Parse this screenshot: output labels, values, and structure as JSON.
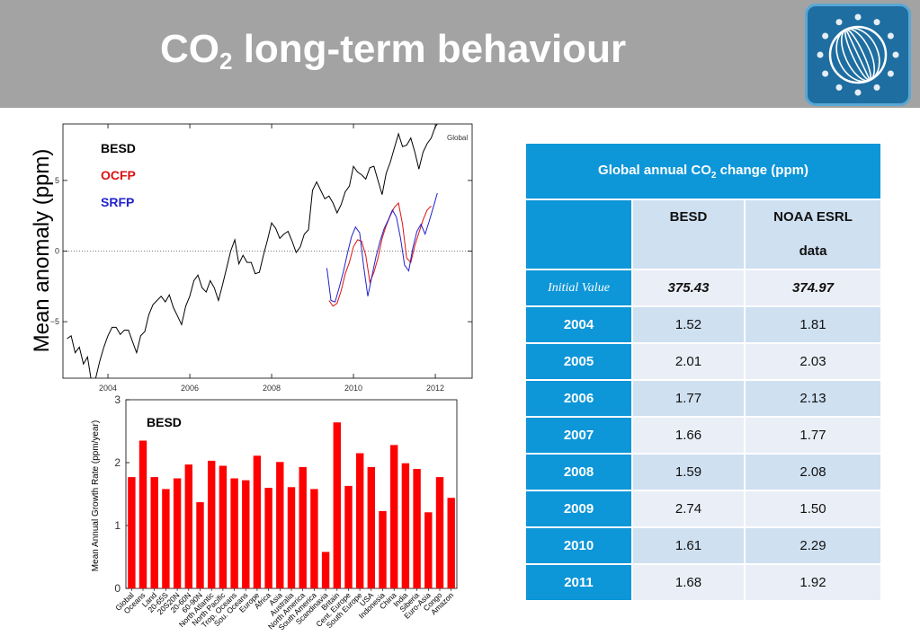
{
  "header": {
    "title_main": "CO",
    "title_sub": "2",
    "title_rest": " long-term behaviour"
  },
  "chart_data": [
    {
      "type": "line",
      "title": "Global",
      "xlabel": "",
      "ylabel": "Mean anomaly (ppm)",
      "xlim": [
        2002.9,
        2012.9
      ],
      "ylim": [
        -9,
        9
      ],
      "xticks": [
        2004,
        2006,
        2008,
        2010,
        2012
      ],
      "yticks": [
        -5,
        0,
        5
      ],
      "zero_line": "dotted",
      "legend_placement": "top-left",
      "series": [
        {
          "name": "BESD",
          "color": "#000000",
          "x": [
            2003.0,
            2003.1,
            2003.2,
            2003.3,
            2003.4,
            2003.5,
            2003.6,
            2003.7,
            2003.8,
            2003.9,
            2004.0,
            2004.1,
            2004.2,
            2004.3,
            2004.4,
            2004.5,
            2004.6,
            2004.7,
            2004.8,
            2004.9,
            2005.0,
            2005.1,
            2005.2,
            2005.3,
            2005.4,
            2005.5,
            2005.6,
            2005.7,
            2005.8,
            2005.9,
            2006.0,
            2006.1,
            2006.2,
            2006.3,
            2006.4,
            2006.5,
            2006.6,
            2006.7,
            2006.8,
            2006.9,
            2007.0,
            2007.1,
            2007.2,
            2007.3,
            2007.4,
            2007.5,
            2007.6,
            2007.7,
            2007.8,
            2007.9,
            2008.0,
            2008.1,
            2008.2,
            2008.3,
            2008.4,
            2008.5,
            2008.6,
            2008.7,
            2008.8,
            2008.9,
            2009.0,
            2009.1,
            2009.2,
            2009.3,
            2009.4,
            2009.5,
            2009.6,
            2009.7,
            2009.8,
            2009.9,
            2010.0,
            2010.1,
            2010.2,
            2010.3,
            2010.4,
            2010.5,
            2010.6,
            2010.7,
            2010.8,
            2010.9,
            2011.0,
            2011.1,
            2011.2,
            2011.3,
            2011.4,
            2011.5,
            2011.6,
            2011.7,
            2011.8,
            2011.9,
            2012.0,
            2012.05
          ],
          "y": [
            -6.2,
            -6.0,
            -7.2,
            -6.8,
            -8.0,
            -7.5,
            -9.3,
            -9.0,
            -7.8,
            -6.8,
            -6.0,
            -5.4,
            -5.4,
            -5.9,
            -5.6,
            -5.6,
            -6.4,
            -7.2,
            -6.0,
            -5.7,
            -4.5,
            -3.8,
            -3.5,
            -3.2,
            -3.6,
            -3.1,
            -4.0,
            -4.6,
            -5.2,
            -3.9,
            -3.2,
            -2.1,
            -1.7,
            -2.6,
            -2.9,
            -2.1,
            -2.6,
            -3.5,
            -2.4,
            -1.2,
            0.0,
            0.8,
            -0.9,
            -0.3,
            -0.8,
            -0.8,
            -1.6,
            -1.5,
            -0.3,
            0.8,
            2.0,
            1.6,
            0.9,
            1.2,
            1.4,
            0.7,
            -0.1,
            0.3,
            1.2,
            1.5,
            4.3,
            4.9,
            4.3,
            3.7,
            3.9,
            3.4,
            2.7,
            3.3,
            4.2,
            4.6,
            6.0,
            5.6,
            5.4,
            5.1,
            5.9,
            6.0,
            5.0,
            4.0,
            5.5,
            6.3,
            7.3,
            8.3,
            7.4,
            7.5,
            8.0,
            7.0,
            5.8,
            7.0,
            7.6,
            8.0,
            8.8,
            9.0
          ]
        },
        {
          "name": "OCFP",
          "color": "#dd1111",
          "x": [
            2009.4,
            2009.5,
            2009.6,
            2009.7,
            2009.8,
            2009.9,
            2010.0,
            2010.1,
            2010.2,
            2010.3,
            2010.4,
            2010.5,
            2010.6,
            2010.7,
            2010.8,
            2010.9,
            2011.0,
            2011.1,
            2011.2,
            2011.3,
            2011.4,
            2011.5,
            2011.6,
            2011.7,
            2011.8,
            2011.9
          ],
          "y": [
            -3.5,
            -3.9,
            -3.7,
            -2.8,
            -1.6,
            -0.8,
            0.3,
            0.8,
            0.7,
            -0.3,
            -2.2,
            -1.5,
            -0.5,
            0.9,
            1.8,
            2.5,
            3.1,
            3.4,
            1.9,
            -0.5,
            -0.8,
            0.4,
            1.3,
            2.2,
            2.9,
            3.2
          ]
        },
        {
          "name": "SRFP",
          "color": "#2222cc",
          "x": [
            2009.35,
            2009.45,
            2009.55,
            2009.65,
            2009.75,
            2009.85,
            2009.95,
            2010.05,
            2010.15,
            2010.25,
            2010.35,
            2010.45,
            2010.55,
            2010.65,
            2010.75,
            2010.85,
            2010.95,
            2011.05,
            2011.15,
            2011.25,
            2011.35,
            2011.45,
            2011.55,
            2011.65,
            2011.75,
            2011.85,
            2011.95,
            2012.05
          ],
          "y": [
            -1.2,
            -3.5,
            -3.6,
            -2.6,
            -1.5,
            -0.2,
            1.0,
            1.7,
            1.3,
            -1.1,
            -3.2,
            -1.8,
            -0.4,
            0.7,
            1.6,
            2.2,
            2.9,
            2.4,
            0.9,
            -1.0,
            -1.4,
            0.2,
            1.4,
            1.9,
            1.2,
            2.1,
            3.1,
            4.1
          ]
        }
      ]
    },
    {
      "type": "bar",
      "title": "BESD",
      "xlabel": "",
      "ylabel": "Mean Annual Growth Rate (ppm/year)",
      "ylim": [
        0,
        3.0
      ],
      "yticks": [
        0,
        1,
        2,
        3
      ],
      "color": "#ff0000",
      "categories": [
        "Global",
        "Oceans",
        "Land",
        "20-65S",
        "20S20N",
        "20-60N",
        "60-90N",
        "North Atlantic",
        "North Pacific",
        "Trop. Oceans",
        "Sou. Oceans",
        "Europe",
        "Africa",
        "Asia",
        "Australia",
        "North America",
        "South America",
        "Scandinavia",
        "Britain",
        "Cent. Europe",
        "South Europe",
        "USA",
        "Indonesia",
        "China",
        "India",
        "Siberia",
        "Euro-Asia",
        "Congo",
        "Amazon"
      ],
      "values": [
        1.77,
        2.35,
        1.77,
        1.58,
        1.75,
        1.97,
        1.37,
        2.03,
        1.95,
        1.75,
        1.72,
        2.11,
        1.6,
        2.01,
        1.61,
        1.93,
        1.58,
        0.58,
        2.64,
        1.63,
        2.15,
        1.93,
        1.23,
        2.28,
        1.99,
        1.9,
        1.21,
        1.77,
        1.44
      ]
    }
  ],
  "legend_labels": {
    "besd": "BESD",
    "ocfp": "OCFP",
    "srfp": "SRFP",
    "global": "Global"
  },
  "table": {
    "title_main": "Global annual CO",
    "title_sub": "2",
    "title_rest": " change (ppm)",
    "col_besd": "BESD",
    "col_noaa_1": "NOAA ESRL",
    "col_noaa_2": "data",
    "initial_label": "Initial Value",
    "initial_besd": "375.43",
    "initial_noaa": "374.97",
    "rows": [
      {
        "year": "2004",
        "besd": "1.52",
        "noaa": "1.81"
      },
      {
        "year": "2005",
        "besd": "2.01",
        "noaa": "2.03"
      },
      {
        "year": "2006",
        "besd": "1.77",
        "noaa": "2.13"
      },
      {
        "year": "2007",
        "besd": "1.66",
        "noaa": "1.77"
      },
      {
        "year": "2008",
        "besd": "1.59",
        "noaa": "2.08"
      },
      {
        "year": "2009",
        "besd": "2.74",
        "noaa": "1.50"
      },
      {
        "year": "2010",
        "besd": "1.61",
        "noaa": "2.29"
      },
      {
        "year": "2011",
        "besd": "1.68",
        "noaa": "1.92"
      }
    ]
  }
}
